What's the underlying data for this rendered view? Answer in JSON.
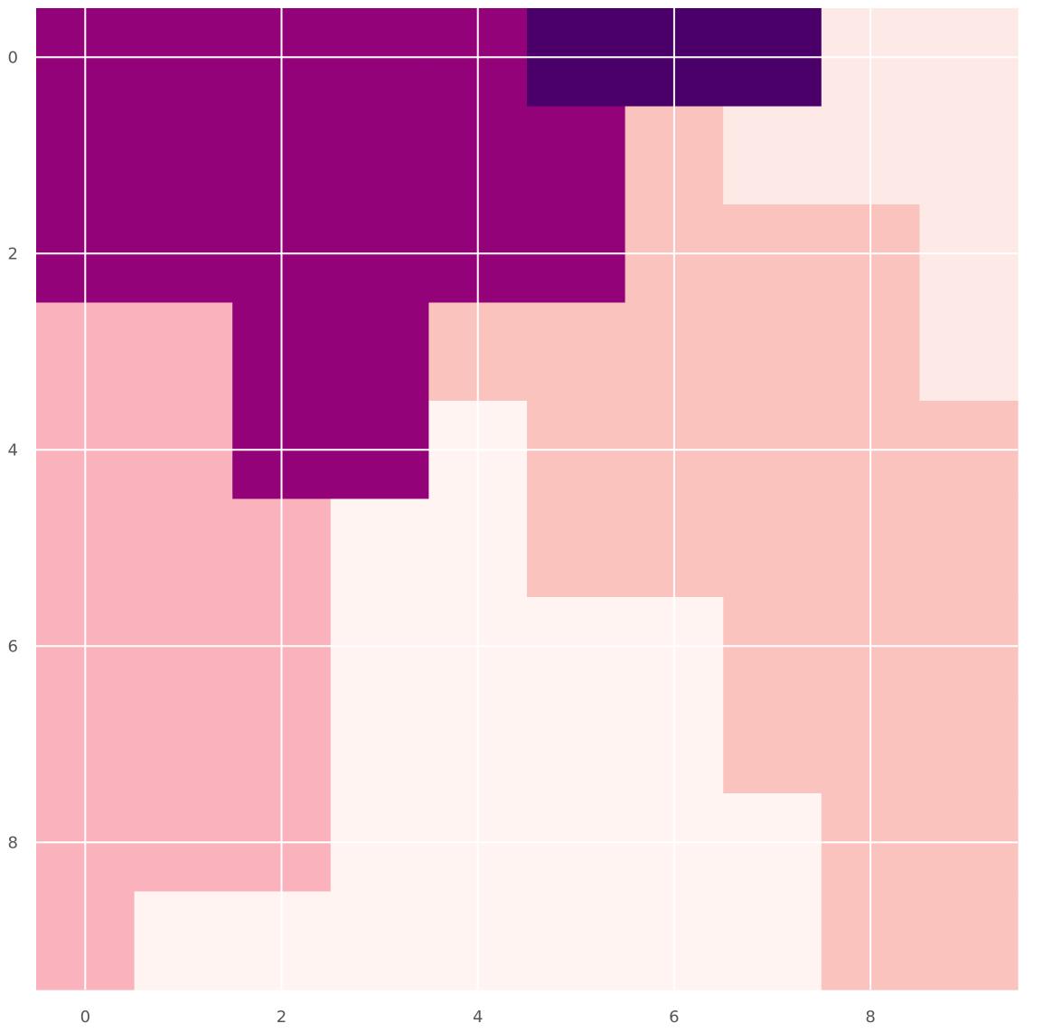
{
  "chart_data": {
    "type": "heatmap",
    "title": "",
    "xlabel": "",
    "ylabel": "",
    "x": [
      0,
      1,
      2,
      3,
      4,
      5,
      6,
      7,
      8,
      9
    ],
    "y": [
      0,
      1,
      2,
      3,
      4,
      5,
      6,
      7,
      8,
      9
    ],
    "xlim": [
      -0.5,
      9.5
    ],
    "ylim": [
      9.5,
      -0.5
    ],
    "x_ticks": [
      "0",
      "2",
      "4",
      "6",
      "8"
    ],
    "y_ticks": [
      "0",
      "2",
      "4",
      "6",
      "8"
    ],
    "grid": true,
    "values": [
      [
        3,
        3,
        3,
        3,
        3,
        4,
        4,
        4,
        0,
        0
      ],
      [
        3,
        3,
        3,
        3,
        3,
        3,
        1,
        0,
        0,
        0
      ],
      [
        3,
        3,
        3,
        3,
        3,
        3,
        1,
        1,
        1,
        0
      ],
      [
        2,
        2,
        3,
        3,
        1,
        1,
        1,
        1,
        1,
        0
      ],
      [
        2,
        2,
        3,
        3,
        -1,
        1,
        1,
        1,
        1,
        1
      ],
      [
        2,
        2,
        2,
        -1,
        -1,
        1,
        1,
        1,
        1,
        1
      ],
      [
        2,
        2,
        2,
        -1,
        -1,
        -1,
        -1,
        1,
        1,
        1
      ],
      [
        2,
        2,
        2,
        -1,
        -1,
        -1,
        -1,
        1,
        1,
        1
      ],
      [
        2,
        2,
        2,
        -1,
        -1,
        -1,
        -1,
        -1,
        1,
        1
      ],
      [
        2,
        -1,
        -1,
        -1,
        -1,
        -1,
        -1,
        -1,
        1,
        1
      ]
    ],
    "colors": {
      "-1": "#fff4f1",
      "0": "#fde9e6",
      "1": "#fbc3be",
      "2": "#fab2bc",
      "3": "#940279",
      "4": "#4a0068"
    }
  }
}
